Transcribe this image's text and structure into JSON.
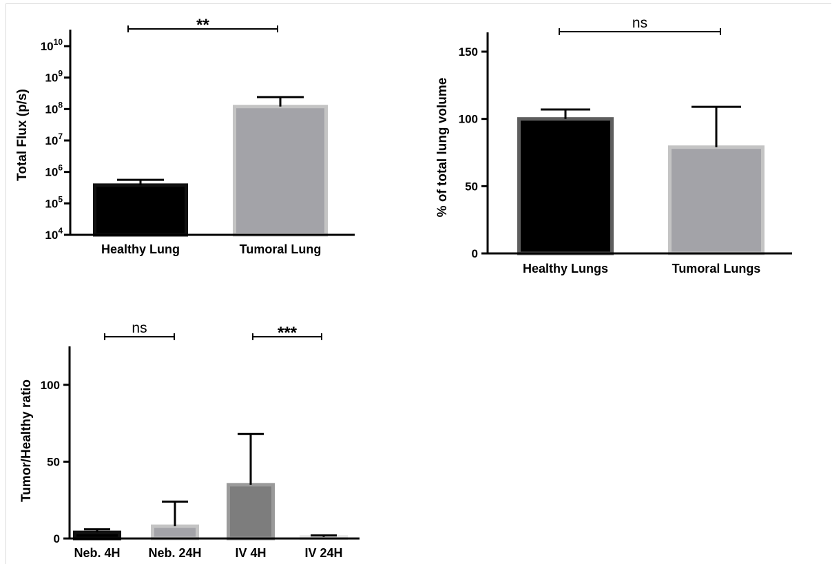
{
  "chart_data": [
    {
      "type": "bar",
      "yscale": "log",
      "ylabel": "Total Flux (p/s)",
      "ylim": [
        10000,
        10000000000
      ],
      "yticks": [
        {
          "base": "10",
          "exp": "4",
          "value": 10000
        },
        {
          "base": "10",
          "exp": "5",
          "value": 100000
        },
        {
          "base": "10",
          "exp": "6",
          "value": 1000000
        },
        {
          "base": "10",
          "exp": "7",
          "value": 10000000
        },
        {
          "base": "10",
          "exp": "8",
          "value": 100000000
        },
        {
          "base": "10",
          "exp": "9",
          "value": 1000000000
        },
        {
          "base": "10",
          "exp": "10",
          "value": 10000000000
        }
      ],
      "categories": [
        "Healthy Lung",
        "Tumoral Lung"
      ],
      "values": [
        380000,
        120000000
      ],
      "error_upper": [
        560000,
        240000000
      ],
      "colors": [
        "#000000",
        "#a3a3a8"
      ],
      "edge_colors": [
        "#111111",
        "#c4c4c4"
      ],
      "significance": [
        {
          "from": 0,
          "to": 1,
          "label": "**"
        }
      ]
    },
    {
      "type": "bar",
      "ylabel": "% of total lung volume",
      "ylim": [
        0,
        150
      ],
      "yticks": [
        {
          "label": "0",
          "value": 0
        },
        {
          "label": "50",
          "value": 50
        },
        {
          "label": "100",
          "value": 100
        },
        {
          "label": "150",
          "value": 150
        }
      ],
      "categories": [
        "Healthy Lungs",
        "Tumoral Lungs"
      ],
      "values": [
        100,
        79
      ],
      "error_upper": [
        107,
        109
      ],
      "colors": [
        "#000000",
        "#a3a3a8"
      ],
      "edge_colors": [
        "#5e5e5e",
        "#c4c4c4"
      ],
      "significance": [
        {
          "from": 0,
          "to": 1,
          "label": "ns"
        }
      ]
    },
    {
      "type": "bar",
      "ylabel": "Tumor/Healthy ratio",
      "ylim": [
        0,
        125
      ],
      "yticks": [
        {
          "label": "0",
          "value": 0
        },
        {
          "label": "50",
          "value": 50
        },
        {
          "label": "100",
          "value": 100
        }
      ],
      "categories": [
        "Neb. 4H",
        "Neb. 24H",
        "IV 4H",
        "IV 24H"
      ],
      "values": [
        4,
        8,
        35,
        1
      ],
      "error_upper": [
        6,
        24,
        68,
        2
      ],
      "colors": [
        "#000000",
        "#a3a3a8",
        "#7d7d7d",
        "#d8d8d8"
      ],
      "edge_colors": [
        "#111111",
        "#c4c4c4",
        "#9a9a9a",
        "#e6e6e6"
      ],
      "significance": [
        {
          "from": 0,
          "to": 1,
          "label": "ns"
        },
        {
          "from": 2,
          "to": 3,
          "label": "***"
        }
      ]
    }
  ]
}
